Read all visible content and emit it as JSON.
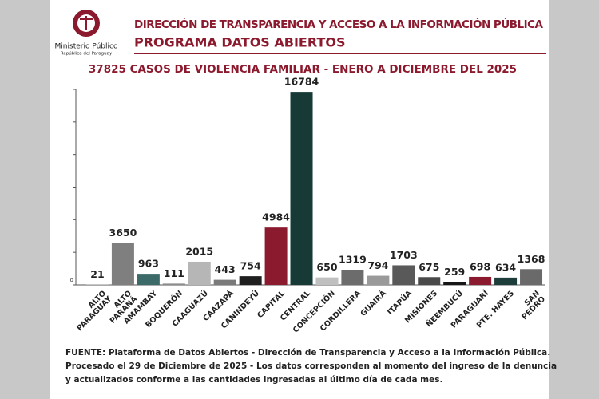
{
  "header": {
    "org": "Ministerio Público",
    "org_sub": "República del Paraguay",
    "title": "DIRECCIÓN DE TRANSPARENCIA Y ACCESO A LA INFORMACIÓN PÚBLICA",
    "subtitle": "PROGRAMA  DATOS ABIERTOS"
  },
  "chart_data": {
    "type": "bar",
    "title": "37825 CASOS DE VIOLENCIA FAMILIAR - ENERO A DICIEMBRE DEL 2025",
    "categories": [
      "ALTO\nPARAGUAY",
      "ALTO\nPARANÁ",
      "AMAMBAY",
      "BOQUERÓN",
      "CAAGUAZÚ",
      "CAAZAPÁ",
      "CANINDEYÚ",
      "CAPITAL",
      "CENTRAL",
      "CONCEPCIÓN",
      "CORDILLERA",
      "GUAIRÁ",
      "ITAPÚA",
      "MISIONES",
      "ÑEEMBUCÚ",
      "PARAGUARÍ",
      "PTE. HAYES",
      "SAN\nPEDRO"
    ],
    "values": [
      21,
      3650,
      963,
      111,
      2015,
      443,
      754,
      4984,
      16784,
      650,
      1319,
      794,
      1703,
      675,
      259,
      698,
      634,
      1368
    ],
    "colors": [
      "#b3b3b3",
      "#7f7f7f",
      "#3b6a69",
      "#8c8c8c",
      "#b6b6b6",
      "#7a7a7a",
      "#1f1f1f",
      "#8b1a2e",
      "#173a37",
      "#c0c0c0",
      "#6c6c6c",
      "#9a9a9a",
      "#595959",
      "#4a4a4a",
      "#161616",
      "#8b1a2e",
      "#1d3d3a",
      "#6a6a6a"
    ],
    "ylim": [
      0,
      17000
    ],
    "yticks": [
      0
    ]
  },
  "footer": {
    "lines": [
      "FUENTE: Plataforma de Datos Abiertos - Dirección de Transparencia y Acceso a la Información Pública.",
      "Procesado el 29 de Diciembre de 2025 - Los datos corresponden al momento del ingreso de la denuncia",
      "y actualizados conforme a las cantidades ingresadas al último día de cada mes."
    ]
  }
}
